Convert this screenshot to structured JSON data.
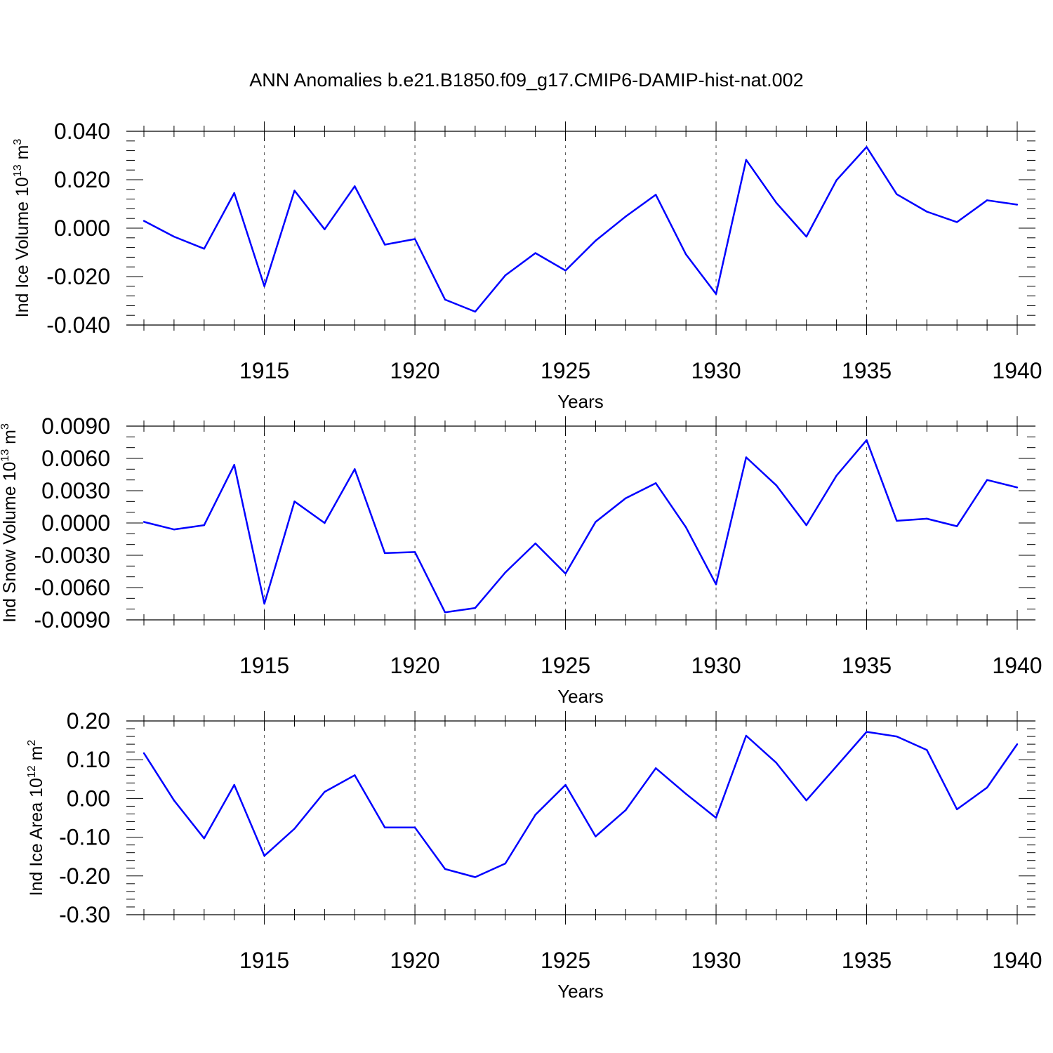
{
  "title": "ANN Anomalies b.e21.B1850.f09_g17.CMIP6-DAMIP-hist-nat.002",
  "colors": {
    "line": "#0000ff",
    "axis": "#000000",
    "grid": "#555555"
  },
  "chart_data": [
    {
      "type": "line",
      "ylabel": {
        "text": "Ind Ice Volume 10",
        "exp": "13",
        "unit": " m",
        "unit_exp": "3"
      },
      "xlabel": "Years",
      "xlim": [
        1911,
        1940
      ],
      "ylim": [
        -0.04,
        0.04
      ],
      "xticks": [
        1915,
        1920,
        1925,
        1930,
        1935,
        1940
      ],
      "xtick_labels": [
        "1915",
        "1920",
        "1925",
        "1930",
        "1935",
        "1940"
      ],
      "yticks": [
        -0.04,
        -0.02,
        0.0,
        0.02,
        0.04
      ],
      "ytick_labels": [
        "-0.040",
        "-0.020",
        "0.000",
        "0.020",
        "0.040"
      ],
      "ydiv": 0.004,
      "series": [
        {
          "name": "Ind Ice Volume",
          "x": [
            1911,
            1912,
            1913,
            1914,
            1915,
            1916,
            1917,
            1918,
            1919,
            1920,
            1921,
            1922,
            1923,
            1924,
            1925,
            1926,
            1927,
            1928,
            1929,
            1930,
            1931,
            1932,
            1933,
            1934,
            1935,
            1936,
            1937,
            1938,
            1939,
            1940
          ],
          "values": [
            0.003,
            -0.0035,
            -0.0085,
            0.0145,
            -0.024,
            0.0155,
            -0.0005,
            0.0173,
            -0.0068,
            -0.0045,
            -0.0295,
            -0.0345,
            -0.0195,
            -0.0103,
            -0.0175,
            -0.0052,
            0.0048,
            0.0138,
            -0.0108,
            -0.0272,
            0.0282,
            0.0105,
            -0.0035,
            0.0198,
            0.0335,
            0.014,
            0.0068,
            0.0025,
            0.0115,
            0.0097
          ]
        }
      ]
    },
    {
      "type": "line",
      "ylabel": {
        "text": "Ind Snow Volume 10",
        "exp": "13",
        "unit": " m",
        "unit_exp": "3"
      },
      "xlabel": "Years",
      "xlim": [
        1911,
        1940
      ],
      "ylim": [
        -0.009,
        0.009
      ],
      "xticks": [
        1915,
        1920,
        1925,
        1930,
        1935,
        1940
      ],
      "xtick_labels": [
        "1915",
        "1920",
        "1925",
        "1930",
        "1935",
        "1940"
      ],
      "yticks": [
        -0.009,
        -0.006,
        -0.003,
        0.0,
        0.003,
        0.006,
        0.009
      ],
      "ytick_labels": [
        "-0.0090",
        "-0.0060",
        "-0.0030",
        "0.0000",
        "0.0030",
        "0.0060",
        "0.0090"
      ],
      "ydiv": 0.001,
      "series": [
        {
          "name": "Ind Snow Volume",
          "x": [
            1911,
            1912,
            1913,
            1914,
            1915,
            1916,
            1917,
            1918,
            1919,
            1920,
            1921,
            1922,
            1923,
            1924,
            1925,
            1926,
            1927,
            1928,
            1929,
            1930,
            1931,
            1932,
            1933,
            1934,
            1935,
            1936,
            1937,
            1938,
            1939,
            1940
          ],
          "values": [
            0.0001,
            -0.0006,
            -0.0002,
            0.0054,
            -0.0075,
            0.002,
            0.0,
            0.005,
            -0.0028,
            -0.0027,
            -0.0083,
            -0.0079,
            -0.0046,
            -0.0019,
            -0.0047,
            0.0001,
            0.0023,
            0.0037,
            -0.0004,
            -0.0057,
            0.0061,
            0.0035,
            -0.0002,
            0.0044,
            0.0077,
            0.0002,
            0.0004,
            -0.0003,
            0.004,
            0.0033
          ]
        }
      ]
    },
    {
      "type": "line",
      "ylabel": {
        "text": "Ind Ice Area 10",
        "exp": "12",
        "unit": " m",
        "unit_exp": "2"
      },
      "xlabel": "Years",
      "xlim": [
        1911,
        1940
      ],
      "ylim": [
        -0.3,
        0.2
      ],
      "xticks": [
        1915,
        1920,
        1925,
        1930,
        1935,
        1940
      ],
      "xtick_labels": [
        "1915",
        "1920",
        "1925",
        "1930",
        "1935",
        "1940"
      ],
      "yticks": [
        -0.3,
        -0.2,
        -0.1,
        0.0,
        0.1,
        0.2
      ],
      "ytick_labels": [
        "-0.30",
        "-0.20",
        "-0.10",
        "0.00",
        "0.10",
        "0.20"
      ],
      "ydiv": 0.02,
      "series": [
        {
          "name": "Ind Ice Area",
          "x": [
            1911,
            1912,
            1913,
            1914,
            1915,
            1916,
            1917,
            1918,
            1919,
            1920,
            1921,
            1922,
            1923,
            1924,
            1925,
            1926,
            1927,
            1928,
            1929,
            1930,
            1931,
            1932,
            1933,
            1934,
            1935,
            1936,
            1937,
            1938,
            1939,
            1940
          ],
          "values": [
            0.117,
            -0.005,
            -0.103,
            0.035,
            -0.148,
            -0.078,
            0.017,
            0.06,
            -0.075,
            -0.075,
            -0.182,
            -0.203,
            -0.168,
            -0.042,
            0.035,
            -0.098,
            -0.03,
            0.078,
            0.012,
            -0.05,
            0.162,
            0.092,
            -0.005,
            0.083,
            0.172,
            0.16,
            0.125,
            -0.028,
            0.028,
            0.14
          ]
        }
      ]
    }
  ]
}
